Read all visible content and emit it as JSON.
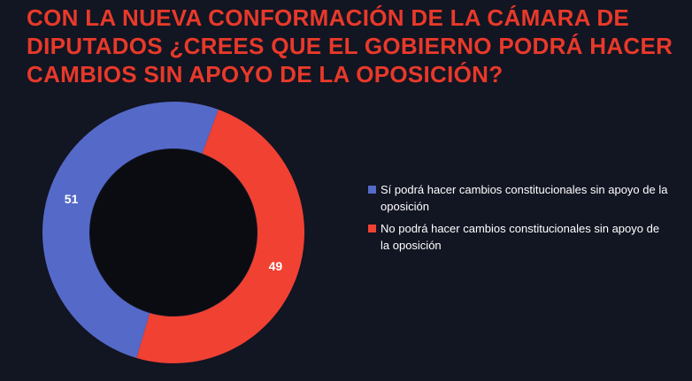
{
  "chart_data": {
    "type": "pie",
    "title": "CON LA NUEVA CONFORMACIÓN DE LA CÁMARA DE DIPUTADOS ¿CREES QUE EL GOBIERNO PODRÁ HACER CAMBIOS SIN APOYO DE LA OPOSICIÓN?",
    "slices": [
      {
        "label": "Sí podrá hacer cambios constitucionales sin apoyo de la oposición",
        "value": 51,
        "color": "#5569c8"
      },
      {
        "label": "No podrá hacer cambios constitucionales sin apoyo de la oposición",
        "value": 49,
        "color": "#f04133"
      }
    ],
    "donut": true,
    "legend_position": "right"
  },
  "colors": {
    "background": "#121522",
    "title": "#e8392a",
    "hole": "#0a0c12"
  }
}
